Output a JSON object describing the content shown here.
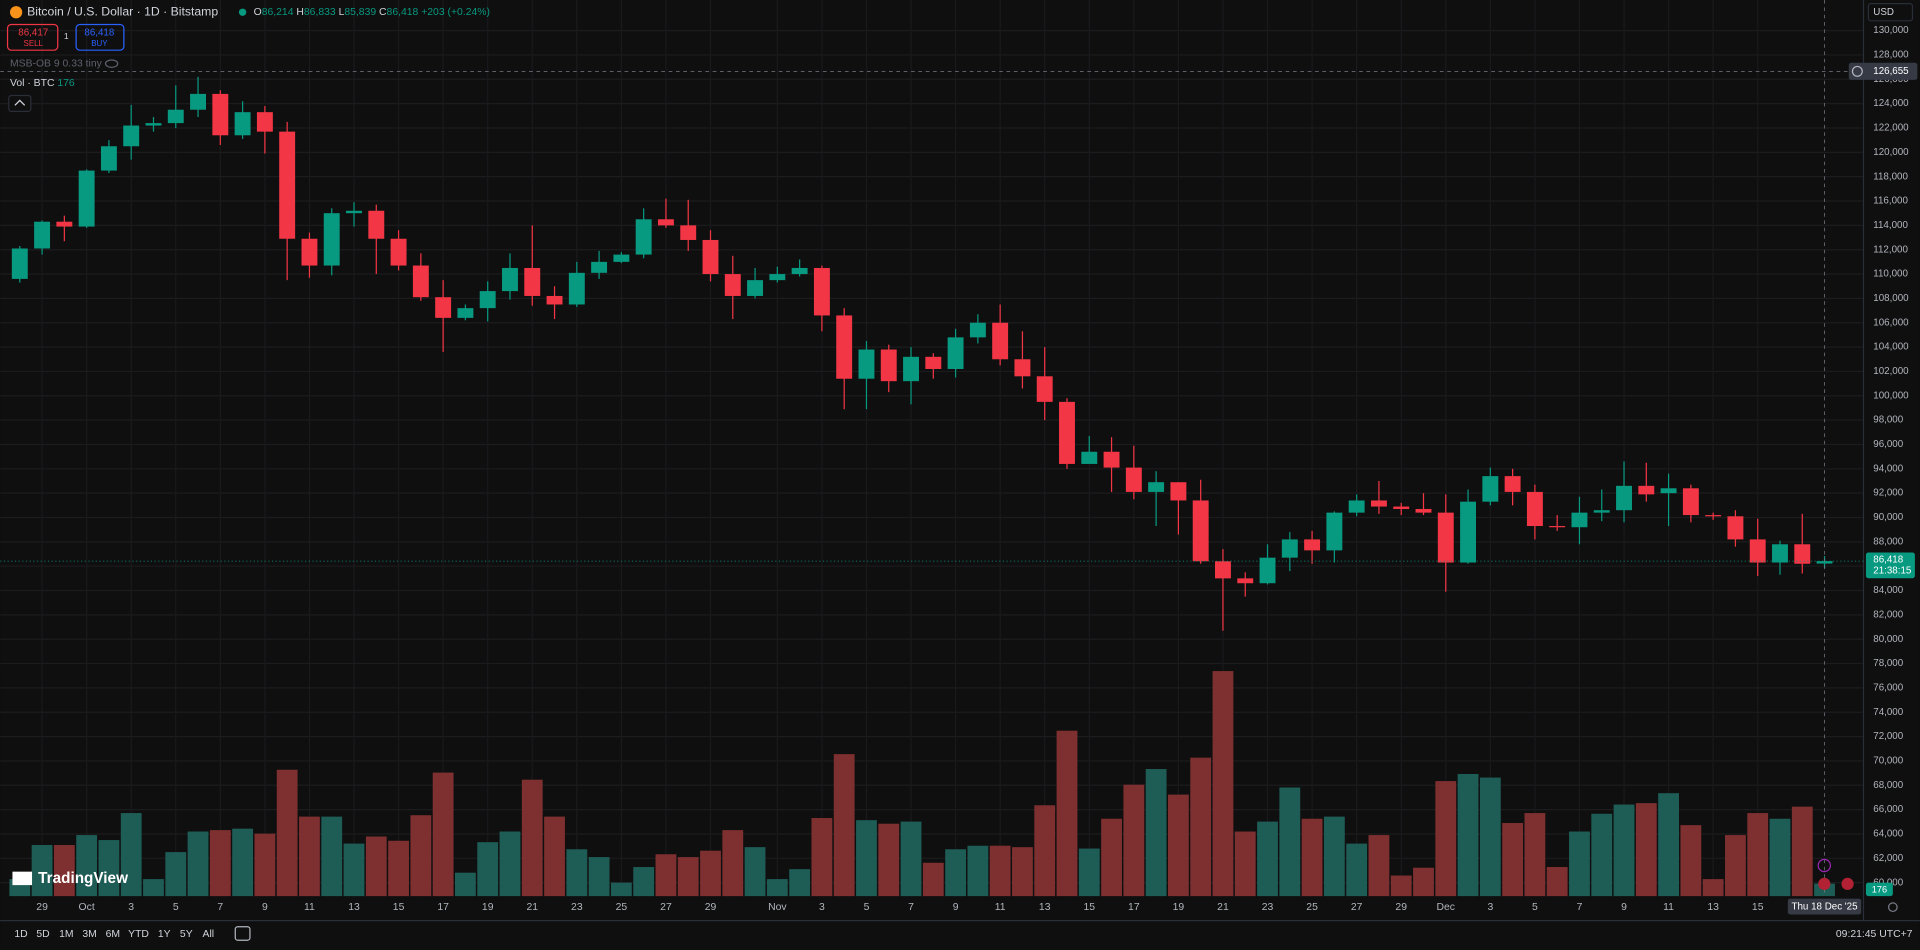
{
  "header": {
    "symbol": "Bitcoin / U.S. Dollar · 1D · Bitstamp",
    "open_label": "O",
    "open": "86,214",
    "high_label": "H",
    "high": "86,833",
    "low_label": "L",
    "low": "85,839",
    "close_label": "C",
    "close": "86,418",
    "change": "+203 (+0.24%)"
  },
  "trade": {
    "sell_price": "86,417",
    "sell": "SELL",
    "spread": "1",
    "buy_price": "86,418",
    "buy": "BUY"
  },
  "indicators": {
    "msb": "MSB-OB 9 0.33 tiny",
    "volume_name": "Vol · BTC",
    "volume_value": "176"
  },
  "price_axis": {
    "currency": "USD",
    "last_price": {
      "value": 86418,
      "label": "86,418"
    },
    "countdown": "21:38:15",
    "volume_last": "176"
  },
  "crosshair": {
    "price": {
      "value": 126655,
      "label": "126,655"
    },
    "date": "Thu 18 Dec '25"
  },
  "brand": "TradingView",
  "footer": {
    "timeframes": [
      "1D",
      "5D",
      "1M",
      "3M",
      "6M",
      "YTD",
      "1Y",
      "5Y",
      "All"
    ],
    "time": "09:21:45 UTC+7"
  },
  "chart_data": {
    "type": "candlestick",
    "grid": true,
    "up_color": "#089981",
    "down_color": "#f23645",
    "volume_up_color": "#1e5c56",
    "volume_down_color": "#7e2f2f",
    "categories": [
      null,
      "29",
      null,
      "Oct",
      null,
      "3",
      null,
      "5",
      null,
      "7",
      null,
      "9",
      null,
      "11",
      null,
      "13",
      null,
      "15",
      null,
      "17",
      null,
      "19",
      null,
      "21",
      null,
      "23",
      null,
      "25",
      null,
      "27",
      null,
      "29",
      null,
      null,
      "Nov",
      null,
      "3",
      null,
      "5",
      null,
      "7",
      null,
      "9",
      null,
      "11",
      null,
      "13",
      null,
      "15",
      null,
      "17",
      null,
      "19",
      null,
      "21",
      null,
      "23",
      null,
      "25",
      null,
      "27",
      null,
      "29",
      null,
      "Dec",
      null,
      "3",
      null,
      "5",
      null,
      "7",
      null,
      "9",
      null,
      "11",
      null,
      "13",
      null,
      "15",
      null,
      null,
      null
    ],
    "open": [
      109600,
      112100,
      114300,
      113900,
      118500,
      120500,
      122200,
      122400,
      123500,
      124800,
      121400,
      123300,
      121700,
      112900,
      110700,
      115000,
      115200,
      112900,
      110700,
      108100,
      106400,
      107200,
      108600,
      110500,
      108200,
      107500,
      110100,
      111000,
      111600,
      114500,
      114000,
      112800,
      110000,
      108200,
      109500,
      110000,
      110500,
      106600,
      101400,
      103800,
      101200,
      103200,
      102200,
      104800,
      106000,
      103000,
      101600,
      99500,
      94400,
      95400,
      94100,
      92100,
      92900,
      91400,
      86400,
      85000,
      84600,
      86700,
      88200,
      87300,
      90400,
      91400,
      90900,
      90700,
      90400,
      86300,
      91300,
      93400,
      92100,
      89300,
      89200,
      90400,
      90600,
      92600,
      92000,
      92400,
      90200,
      90100,
      88200,
      86300,
      87800,
      86214
    ],
    "high": [
      112300,
      114400,
      114800,
      118600,
      121000,
      123900,
      122900,
      125500,
      126200,
      125100,
      124200,
      123800,
      122500,
      113400,
      115400,
      115900,
      115700,
      113600,
      111700,
      109500,
      107500,
      109400,
      111700,
      114000,
      109000,
      111000,
      111900,
      111800,
      115400,
      116200,
      116100,
      113600,
      111500,
      110500,
      110600,
      111200,
      110700,
      107200,
      104500,
      104200,
      104000,
      103500,
      105500,
      106700,
      107500,
      105300,
      104000,
      99800,
      96700,
      96600,
      95900,
      93800,
      92900,
      93100,
      87400,
      85500,
      87800,
      88800,
      88900,
      90500,
      91900,
      93000,
      91200,
      92000,
      91900,
      92300,
      94100,
      94000,
      92700,
      90200,
      91700,
      92300,
      94600,
      94500,
      93600,
      92700,
      90400,
      90600,
      89900,
      88100,
      90300,
      86833
    ],
    "low": [
      109300,
      111600,
      112700,
      113800,
      118300,
      119400,
      121700,
      122000,
      122900,
      120600,
      121100,
      119900,
      109500,
      109700,
      109900,
      113900,
      110000,
      110300,
      107800,
      103600,
      106200,
      106100,
      107900,
      107400,
      106300,
      107300,
      109600,
      110900,
      111300,
      113800,
      111900,
      109400,
      106300,
      108000,
      109300,
      109800,
      105300,
      98900,
      98900,
      100300,
      99300,
      101400,
      101500,
      104300,
      102500,
      100600,
      98000,
      94000,
      94400,
      92100,
      91500,
      89300,
      88600,
      86200,
      80700,
      83500,
      84500,
      85600,
      86200,
      86300,
      90100,
      90300,
      90200,
      90200,
      83900,
      86200,
      91000,
      91000,
      88200,
      88900,
      87800,
      89700,
      89600,
      91300,
      89300,
      89600,
      89800,
      87600,
      85200,
      85300,
      85400,
      85839
    ],
    "close": [
      112100,
      114300,
      113900,
      118500,
      120500,
      122200,
      122400,
      123500,
      124800,
      121400,
      123300,
      121700,
      112900,
      110700,
      115000,
      115200,
      112900,
      110700,
      108100,
      106400,
      107200,
      108600,
      110500,
      108200,
      107500,
      110100,
      111000,
      111600,
      114500,
      114000,
      112800,
      110000,
      108200,
      109500,
      110000,
      110500,
      106600,
      101400,
      103800,
      101200,
      103200,
      102200,
      104800,
      106000,
      103000,
      101600,
      99500,
      94400,
      95400,
      94100,
      92100,
      92900,
      91400,
      86400,
      85000,
      84600,
      86700,
      88200,
      87300,
      90400,
      91400,
      90900,
      90700,
      90400,
      86300,
      91300,
      93400,
      92100,
      89300,
      89200,
      90400,
      90600,
      92600,
      91900,
      92400,
      90200,
      90100,
      88200,
      86300,
      87800,
      86200,
      86418
    ],
    "volume": [
      240,
      720,
      720,
      860,
      790,
      1170,
      240,
      620,
      910,
      930,
      950,
      880,
      1780,
      1120,
      1120,
      740,
      840,
      780,
      1140,
      1740,
      330,
      760,
      910,
      1640,
      1120,
      660,
      550,
      190,
      410,
      590,
      550,
      640,
      930,
      690,
      240,
      380,
      1100,
      2000,
      1070,
      1020,
      1050,
      470,
      660,
      710,
      710,
      690,
      1280,
      2330,
      670,
      1090,
      1570,
      1790,
      1430,
      1950,
      3170,
      910,
      1050,
      1530,
      1090,
      1120,
      740,
      860,
      290,
      400,
      1620,
      1720,
      1670,
      1030,
      1170,
      410,
      910,
      1160,
      1290,
      1310,
      1450,
      1000,
      240,
      860,
      1170,
      1090,
      1260,
      176
    ],
    "ylim": [
      60000,
      130000
    ],
    "volume_ylim": [
      0,
      4000
    ],
    "yticks": [
      {
        "value": 60000,
        "label": "60,000"
      },
      {
        "value": 62000,
        "label": "62,000"
      },
      {
        "value": 64000,
        "label": "64,000"
      },
      {
        "value": 66000,
        "label": "66,000"
      },
      {
        "value": 68000,
        "label": "68,000"
      },
      {
        "value": 70000,
        "label": "70,000"
      },
      {
        "value": 72000,
        "label": "72,000"
      },
      {
        "value": 74000,
        "label": "74,000"
      },
      {
        "value": 76000,
        "label": "76,000"
      },
      {
        "value": 78000,
        "label": "78,000"
      },
      {
        "value": 80000,
        "label": "80,000"
      },
      {
        "value": 82000,
        "label": "82,000"
      },
      {
        "value": 84000,
        "label": "84,000"
      },
      {
        "value": 86000,
        "label": "86,000"
      },
      {
        "value": 88000,
        "label": "88,000"
      },
      {
        "value": 90000,
        "label": "90,000"
      },
      {
        "value": 92000,
        "label": "92,000"
      },
      {
        "value": 94000,
        "label": "94,000"
      },
      {
        "value": 96000,
        "label": "96,000"
      },
      {
        "value": 98000,
        "label": "98,000"
      },
      {
        "value": 100000,
        "label": "100,000"
      },
      {
        "value": 102000,
        "label": "102,000"
      },
      {
        "value": 104000,
        "label": "104,000"
      },
      {
        "value": 106000,
        "label": "106,000"
      },
      {
        "value": 108000,
        "label": "108,000"
      },
      {
        "value": 110000,
        "label": "110,000"
      },
      {
        "value": 112000,
        "label": "112,000"
      },
      {
        "value": 114000,
        "label": "114,000"
      },
      {
        "value": 116000,
        "label": "116,000"
      },
      {
        "value": 118000,
        "label": "118,000"
      },
      {
        "value": 120000,
        "label": "120,000"
      },
      {
        "value": 122000,
        "label": "122,000"
      },
      {
        "value": 124000,
        "label": "124,000"
      },
      {
        "value": 126000,
        "label": "126,000"
      },
      {
        "value": 128000,
        "label": "128,000"
      },
      {
        "value": 130000,
        "label": "130,000"
      }
    ]
  }
}
